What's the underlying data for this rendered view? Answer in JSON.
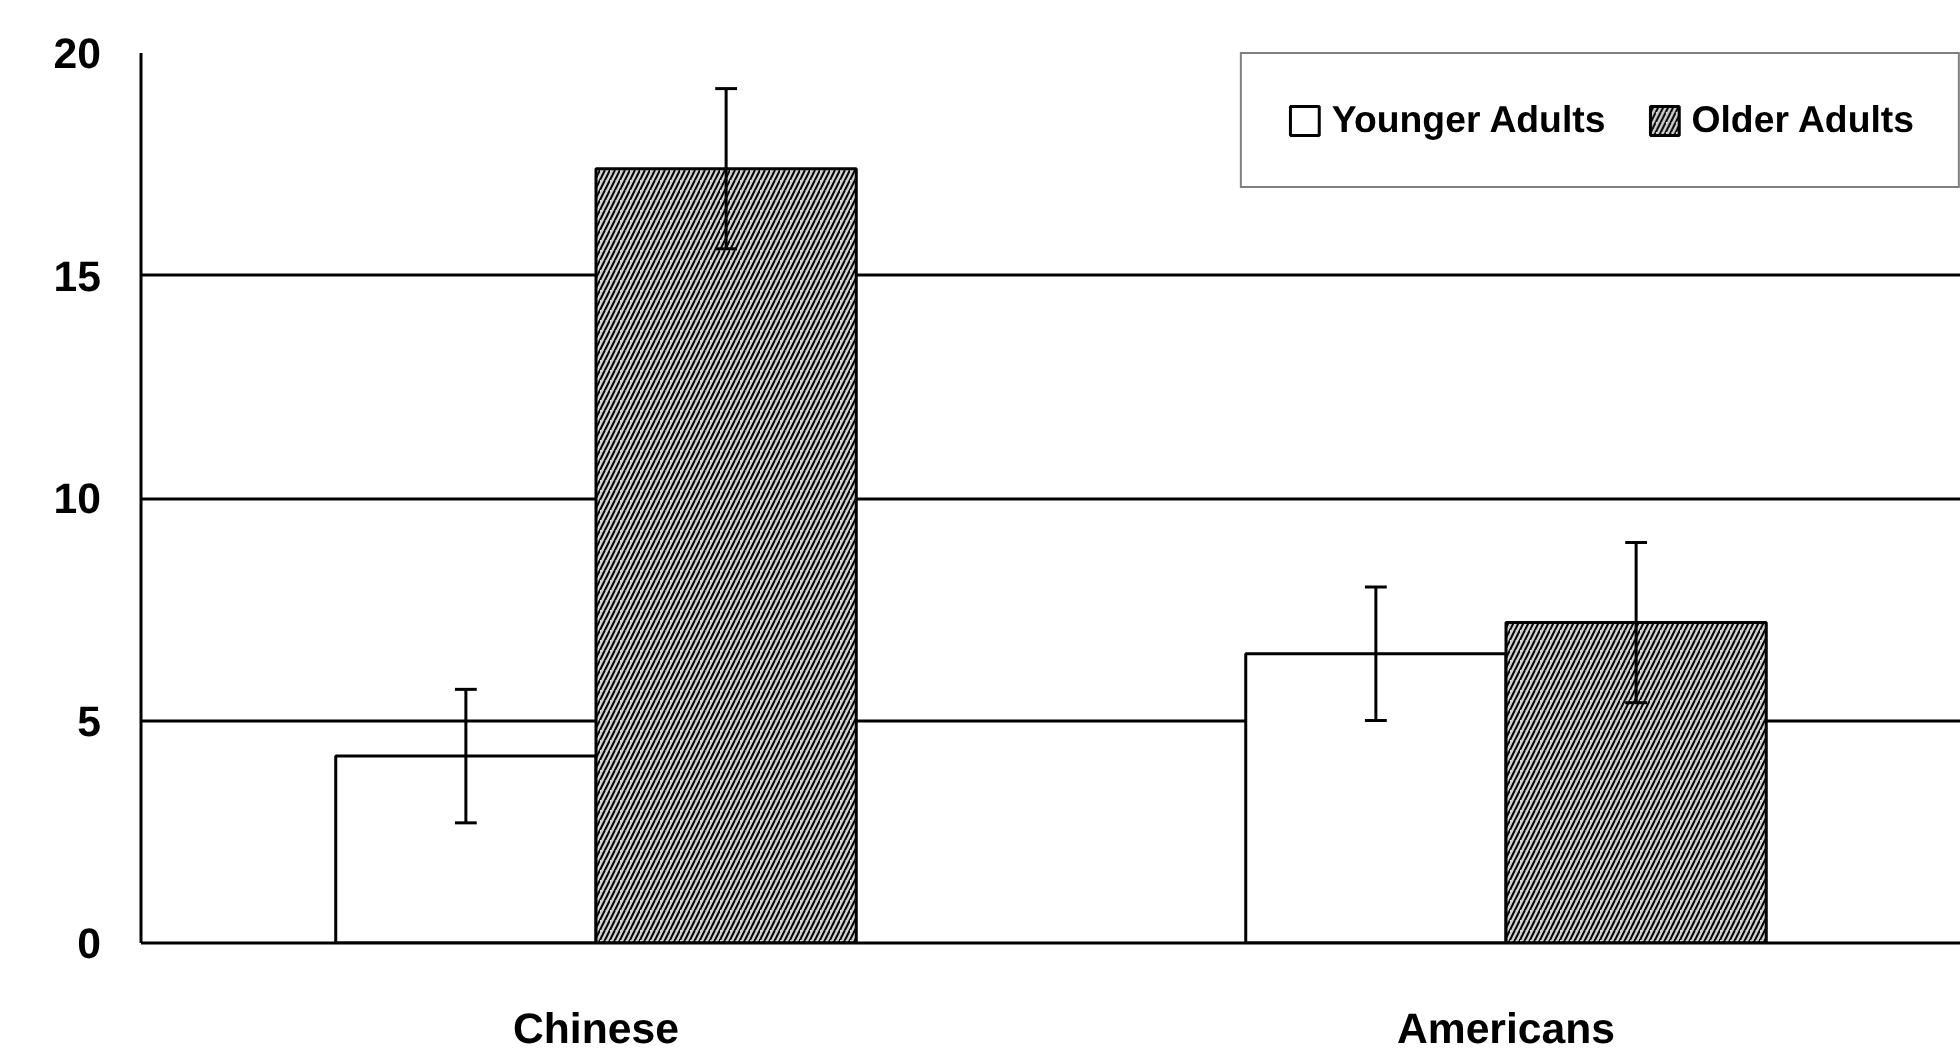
{
  "chart_data": {
    "type": "bar",
    "categories": [
      "Chinese",
      "Americans"
    ],
    "series": [
      {
        "name": "Younger Adults",
        "color": "#ffffff",
        "values": [
          4.2,
          6.5
        ],
        "errors": [
          1.5,
          1.5
        ]
      },
      {
        "name": "Older Adults",
        "color": "#d0d0d0",
        "values": [
          17.4,
          7.2
        ],
        "errors": [
          1.8,
          1.8
        ]
      }
    ],
    "ylim": [
      0,
      20
    ],
    "yticks": [
      0,
      5,
      10,
      15,
      20
    ],
    "grid": "y",
    "legend": "top right"
  }
}
